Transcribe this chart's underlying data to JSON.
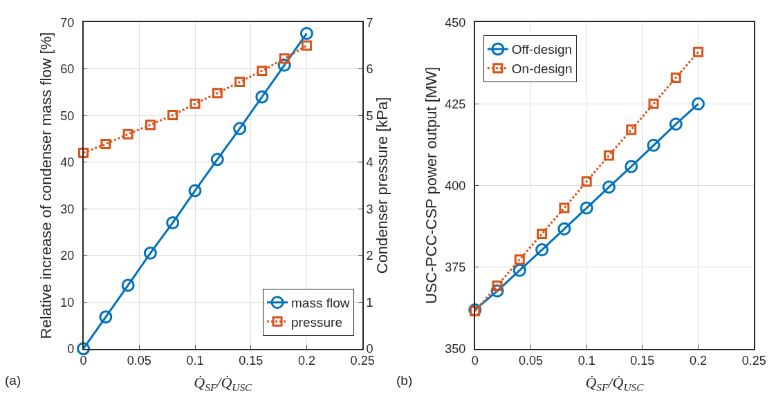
{
  "chart_data": [
    {
      "type": "line",
      "x": [
        0,
        0.02,
        0.04,
        0.06,
        0.08,
        0.1,
        0.12,
        0.14,
        0.16,
        0.18,
        0.2
      ],
      "series": [
        {
          "name": "mass flow",
          "color": "#0072bd",
          "marker": "circle",
          "line_style": "solid",
          "values": [
            0,
            6.8,
            13.6,
            20.5,
            27.0,
            33.9,
            40.6,
            47.2,
            54.0,
            60.8,
            67.6
          ]
        },
        {
          "name": "pressure",
          "color": "#d95319",
          "marker": "square",
          "line_style": "dotted",
          "axis": "y2",
          "values": [
            4.2,
            4.39,
            4.6,
            4.8,
            5.01,
            5.25,
            5.48,
            5.72,
            5.96,
            6.22,
            6.5
          ]
        }
      ],
      "xlabel": "Q̇$_{SF}$/Q̇$_{USC}$",
      "ylabel": "Relative increase of condenser mass flow [%]",
      "y2label": "Condenser pressure [kPa]",
      "xlim": [
        0,
        0.25
      ],
      "xticks": [
        0,
        0.05,
        0.1,
        0.15,
        0.2,
        0.25
      ],
      "ylim": [
        0,
        70
      ],
      "yticks": [
        0,
        10,
        20,
        30,
        40,
        50,
        60,
        70
      ],
      "y2lim": [
        0,
        7
      ],
      "y2ticks": [
        0,
        1,
        2,
        3,
        4,
        5,
        6,
        7
      ],
      "grid": true,
      "legend": "bottom right",
      "annotations": [
        "(a)"
      ]
    },
    {
      "type": "line",
      "x": [
        0,
        0.02,
        0.04,
        0.06,
        0.08,
        0.1,
        0.12,
        0.14,
        0.16,
        0.18,
        0.2
      ],
      "series": [
        {
          "name": "Off-design",
          "color": "#0072bd",
          "marker": "circle",
          "line_style": "solid",
          "values": [
            361.9,
            367.7,
            374.0,
            380.3,
            386.7,
            393.1,
            399.5,
            405.8,
            412.3,
            418.8,
            425.0
          ]
        },
        {
          "name": "On-design",
          "color": "#d95319",
          "marker": "square",
          "line_style": "dotted",
          "values": [
            361.5,
            369.3,
            377.3,
            385.2,
            393.1,
            401.2,
            409.2,
            417.1,
            425.0,
            433.0,
            440.9
          ]
        }
      ],
      "xlabel": "Q̇$_{SF}$/Q̇$_{USC}$",
      "ylabel": "USC-PCC-CSP power output [MW]",
      "xlim": [
        0,
        0.25
      ],
      "xticks": [
        0,
        0.05,
        0.1,
        0.15,
        0.2,
        0.25
      ],
      "ylim": [
        350,
        450
      ],
      "yticks": [
        350,
        375,
        400,
        425,
        450
      ],
      "grid": true,
      "legend": "top left",
      "annotations": [
        "(b)"
      ]
    }
  ]
}
